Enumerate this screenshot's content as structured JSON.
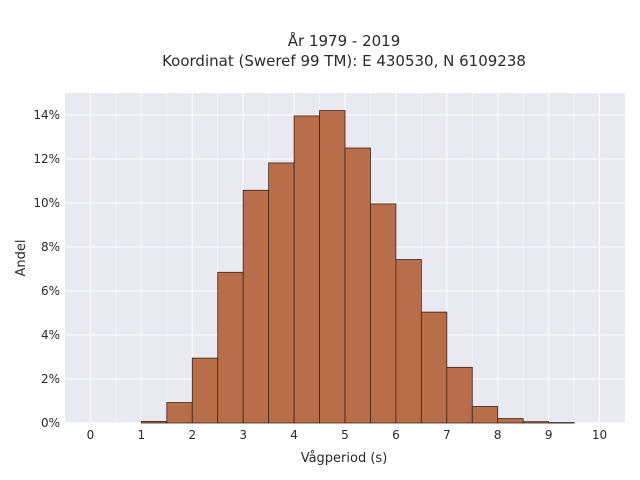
{
  "chart_data": {
    "type": "bar",
    "title_line1": "År 1979 - 2019",
    "title_line2": "Koordinat (Sweref 99 TM): E 430530, N 6109238",
    "xlabel": "Vågperiod (s)",
    "ylabel": "Andel",
    "xlim": [
      -0.5,
      10.5
    ],
    "ylim": [
      0,
      0.15
    ],
    "x_ticks": [
      0,
      1,
      2,
      3,
      4,
      5,
      6,
      7,
      8,
      9,
      10
    ],
    "y_ticks": [
      0,
      0.02,
      0.04,
      0.06,
      0.08,
      0.1,
      0.12,
      0.14
    ],
    "y_tick_labels": [
      "0%",
      "2%",
      "4%",
      "6%",
      "8%",
      "10%",
      "12%",
      "14%"
    ],
    "bin_width": 0.5,
    "bins": [
      {
        "x0": 1.0,
        "value": 0.0007
      },
      {
        "x0": 1.5,
        "value": 0.0093
      },
      {
        "x0": 2.0,
        "value": 0.0295
      },
      {
        "x0": 2.5,
        "value": 0.0685
      },
      {
        "x0": 3.0,
        "value": 0.1058
      },
      {
        "x0": 3.5,
        "value": 0.1182
      },
      {
        "x0": 4.0,
        "value": 0.1396
      },
      {
        "x0": 4.5,
        "value": 0.142
      },
      {
        "x0": 5.0,
        "value": 0.125
      },
      {
        "x0": 5.5,
        "value": 0.0996
      },
      {
        "x0": 6.0,
        "value": 0.0743
      },
      {
        "x0": 6.5,
        "value": 0.0504
      },
      {
        "x0": 7.0,
        "value": 0.0253
      },
      {
        "x0": 7.5,
        "value": 0.0075
      },
      {
        "x0": 8.0,
        "value": 0.002
      },
      {
        "x0": 8.5,
        "value": 0.0006
      },
      {
        "x0": 9.0,
        "value": 0.0002
      }
    ],
    "grid": true,
    "bar_color": "#b86e48",
    "bar_edge_color": "#3b2418",
    "plot_bg": "#e9e9f1",
    "grid_color": "#ffffff"
  }
}
